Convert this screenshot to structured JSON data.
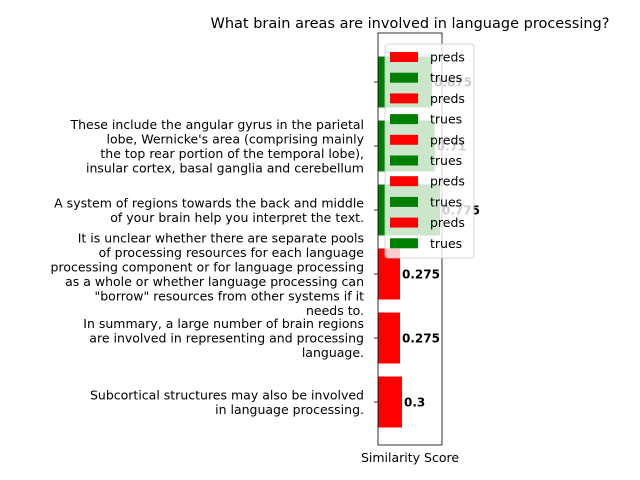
{
  "chart_data": {
    "type": "barh",
    "title": "What brain areas are involved in language processing?",
    "x_label": "Similarity Score",
    "categories": [
      null,
      "These include the angular gyrus in the parietal\nlobe, Wernicke's area (comprising mainly\nthe top rear portion of the temporal lobe),\ninsular cortex, basal ganglia and cerebellum",
      "A system of regions towards the back and middle\nof your brain help you interpret the text.",
      "It is unclear whether there are separate pools\nof processing resources for each language\nprocessing component or for language processing\nas a whole or whether language processing can\n\"borrow\" resources from other systems if it\nneeds to.",
      "In summary, a large number of brain regions\nare involved in representing and processing\nlanguage.",
      "Subcortical structures may also be involved\nin language processing."
    ],
    "series": [
      {
        "name": "preds",
        "color": "#ff0000",
        "values": [
          null,
          null,
          null,
          0.275,
          0.275,
          0.3
        ]
      },
      {
        "name": "trues",
        "color": "#008000",
        "values": [
          0.675,
          0.71,
          0.775,
          null,
          null,
          null
        ]
      }
    ],
    "legend_entries": [
      {
        "name": "preds",
        "color": "#ff0000"
      },
      {
        "name": "trues",
        "color": "#008000"
      },
      {
        "name": "preds",
        "color": "#ff0000"
      },
      {
        "name": "trues",
        "color": "#008000"
      },
      {
        "name": "preds",
        "color": "#ff0000"
      },
      {
        "name": "trues",
        "color": "#008000"
      },
      {
        "name": "preds",
        "color": "#ff0000"
      },
      {
        "name": "trues",
        "color": "#008000"
      },
      {
        "name": "preds",
        "color": "#ff0000"
      },
      {
        "name": "trues",
        "color": "#008000"
      }
    ],
    "xlim": [
      0,
      0.8
    ],
    "legend": "upper right"
  }
}
